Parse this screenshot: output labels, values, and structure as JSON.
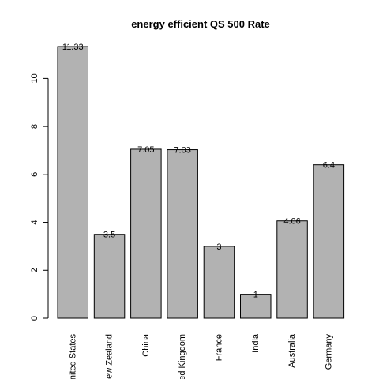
{
  "chart_data": {
    "type": "bar",
    "title": "energy efficient QS 500 Rate",
    "xlabel": "",
    "ylabel": "",
    "categories": [
      "United States",
      "New Zealand",
      "China",
      "United Kingdom",
      "France",
      "India",
      "Australia",
      "Germany"
    ],
    "values": [
      11.33,
      3.5,
      7.05,
      7.03,
      3,
      1,
      4.06,
      6.4
    ],
    "value_labels": [
      "11.33",
      "3.5",
      "7.05",
      "7.03",
      "3",
      "1",
      "4.06",
      "6.4"
    ],
    "ylim": [
      0,
      11.33
    ],
    "yticks": [
      0,
      2,
      4,
      6,
      8,
      10
    ],
    "grid": false,
    "legend": "none",
    "bar_color": "#b2b2b2"
  }
}
